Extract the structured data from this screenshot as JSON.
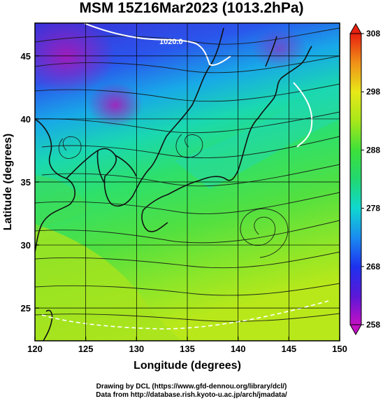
{
  "title": "MSM 15Z16Mar2023 (1013.2hPa)",
  "chart_data": {
    "type": "map",
    "title": "MSM 15Z16Mar2023 (1013.2hPa)",
    "xlabel": "Longitude (degrees)",
    "ylabel": "Latitude  (degrees)",
    "xlim": [
      120,
      150
    ],
    "ylim": [
      22.4,
      47.6
    ],
    "x_ticks": [
      120,
      125,
      130,
      135,
      140,
      145,
      150
    ],
    "x_tick_labels": [
      "120",
      "125",
      "130",
      "135",
      "140",
      "145",
      "150"
    ],
    "y_ticks": [
      25,
      30,
      35,
      40,
      45
    ],
    "y_tick_labels": [
      "25",
      "30",
      "35",
      "40",
      "45"
    ],
    "grid": true,
    "field": "temperature (K) shaded, streamlines overlaid",
    "colorbar": {
      "min": 258,
      "max": 308,
      "ticks": [
        258,
        268,
        278,
        288,
        298,
        308
      ],
      "tick_labels": [
        "258",
        "268",
        "278",
        "288",
        "298",
        "308"
      ],
      "placement": "right"
    },
    "contour_label": "1020.0"
  },
  "credits": {
    "line1": "Drawing by DCL (https://www.gfd-dennou.org/library/dcl/)",
    "line2": "Data from http://database.rish.kyoto-u.ac.jp/arch/jmadata/"
  },
  "colors": {
    "cold": "#9a0fa8",
    "cool": "#1e3cf0",
    "mild": "#2ee070",
    "warm": "#b8e81a",
    "hot": "#e83b10",
    "land": "#222222"
  }
}
